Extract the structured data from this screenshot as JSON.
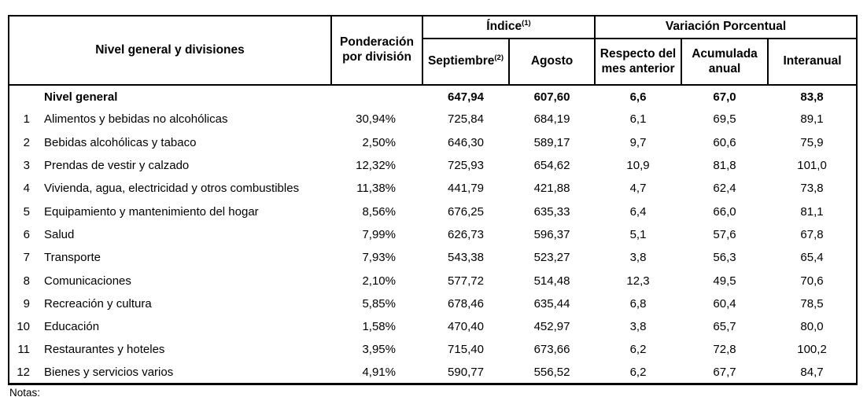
{
  "table": {
    "header": {
      "division": "Nivel general y divisiones",
      "weight": "Ponderación por división",
      "index_group": {
        "text": "Índice",
        "sup": "(1)"
      },
      "variation_group": "Variación Porcentual",
      "september": {
        "text": "Septiembre",
        "sup": "(2)"
      },
      "august": "Agosto",
      "monthly": "Respecto del mes anterior",
      "accumulated": "Acumulada anual",
      "interannual": "Interanual"
    },
    "rows": [
      {
        "num": "",
        "name": "Nivel general",
        "weight": "",
        "september": "647,94",
        "august": "607,60",
        "monthly": "6,6",
        "accumulated": "67,0",
        "interannual": "83,8",
        "bold": true
      },
      {
        "num": "1",
        "name": "Alimentos y bebidas no alcohólicas",
        "weight": "30,94%",
        "september": "725,84",
        "august": "684,19",
        "monthly": "6,1",
        "accumulated": "69,5",
        "interannual": "89,1"
      },
      {
        "num": "2",
        "name": "Bebidas alcohólicas y tabaco",
        "weight": "2,50%",
        "september": "646,30",
        "august": "589,17",
        "monthly": "9,7",
        "accumulated": "60,6",
        "interannual": "75,9"
      },
      {
        "num": "3",
        "name": "Prendas de vestir y calzado",
        "weight": "12,32%",
        "september": "725,93",
        "august": "654,62",
        "monthly": "10,9",
        "accumulated": "81,8",
        "interannual": "101,0"
      },
      {
        "num": "4",
        "name": "Vivienda, agua, electricidad y otros combustibles",
        "weight": "11,38%",
        "september": "441,79",
        "august": "421,88",
        "monthly": "4,7",
        "accumulated": "62,4",
        "interannual": "73,8"
      },
      {
        "num": "5",
        "name": "Equipamiento y mantenimiento del hogar",
        "weight": "8,56%",
        "september": "676,25",
        "august": "635,33",
        "monthly": "6,4",
        "accumulated": "66,0",
        "interannual": "81,1"
      },
      {
        "num": "6",
        "name": "Salud",
        "weight": "7,99%",
        "september": "626,73",
        "august": "596,37",
        "monthly": "5,1",
        "accumulated": "57,6",
        "interannual": "67,8"
      },
      {
        "num": "7",
        "name": "Transporte",
        "weight": "7,93%",
        "september": "543,38",
        "august": "523,27",
        "monthly": "3,8",
        "accumulated": "56,3",
        "interannual": "65,4"
      },
      {
        "num": "8",
        "name": "Comunicaciones",
        "weight": "2,10%",
        "september": "577,72",
        "august": "514,48",
        "monthly": "12,3",
        "accumulated": "49,5",
        "interannual": "70,6"
      },
      {
        "num": "9",
        "name": "Recreación y cultura",
        "weight": "5,85%",
        "september": "678,46",
        "august": "635,44",
        "monthly": "6,8",
        "accumulated": "60,4",
        "interannual": "78,5"
      },
      {
        "num": "10",
        "name": "Educación",
        "weight": "1,58%",
        "september": "470,40",
        "august": "452,97",
        "monthly": "3,8",
        "accumulated": "65,7",
        "interannual": "80,0"
      },
      {
        "num": "11",
        "name": "Restaurantes y hoteles",
        "weight": "3,95%",
        "september": "715,40",
        "august": "673,66",
        "monthly": "6,2",
        "accumulated": "72,8",
        "interannual": "100,2"
      },
      {
        "num": "12",
        "name": "Bienes y servicios varios",
        "weight": "4,91%",
        "september": "590,77",
        "august": "556,52",
        "monthly": "6,2",
        "accumulated": "67,7",
        "interannual": "84,7"
      }
    ]
  },
  "footer": {
    "notes_label": "Notas:"
  }
}
